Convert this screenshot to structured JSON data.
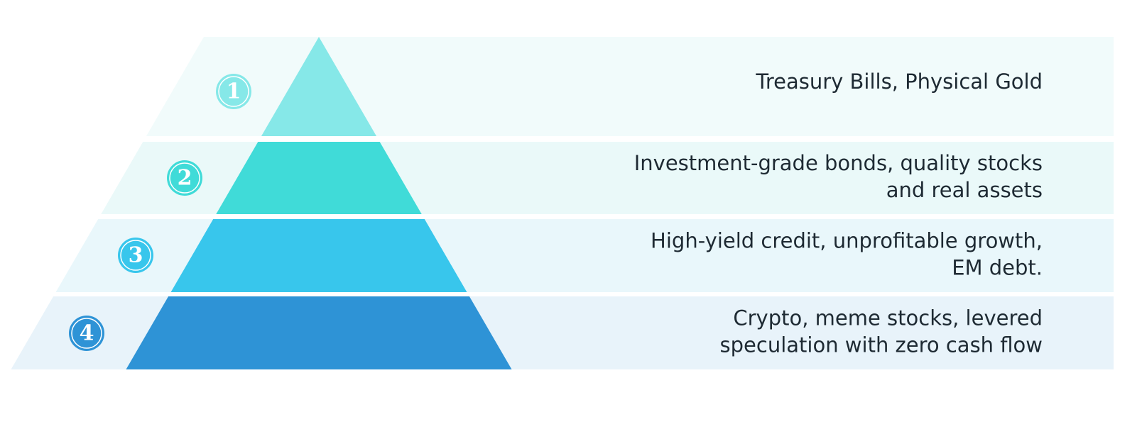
{
  "tiers": [
    {
      "number": "1",
      "lines": [
        "Treasury Bills, Physical Gold"
      ]
    },
    {
      "number": "2",
      "lines": [
        "Investment-grade bonds, quality stocks",
        "and real assets"
      ]
    },
    {
      "number": "3",
      "lines": [
        "High-yield credit, unprofitable growth,",
        "EM debt."
      ]
    },
    {
      "number": "4",
      "lines": [
        "Crypto, meme stocks, levered",
        "speculation with zero cash flow"
      ]
    }
  ]
}
